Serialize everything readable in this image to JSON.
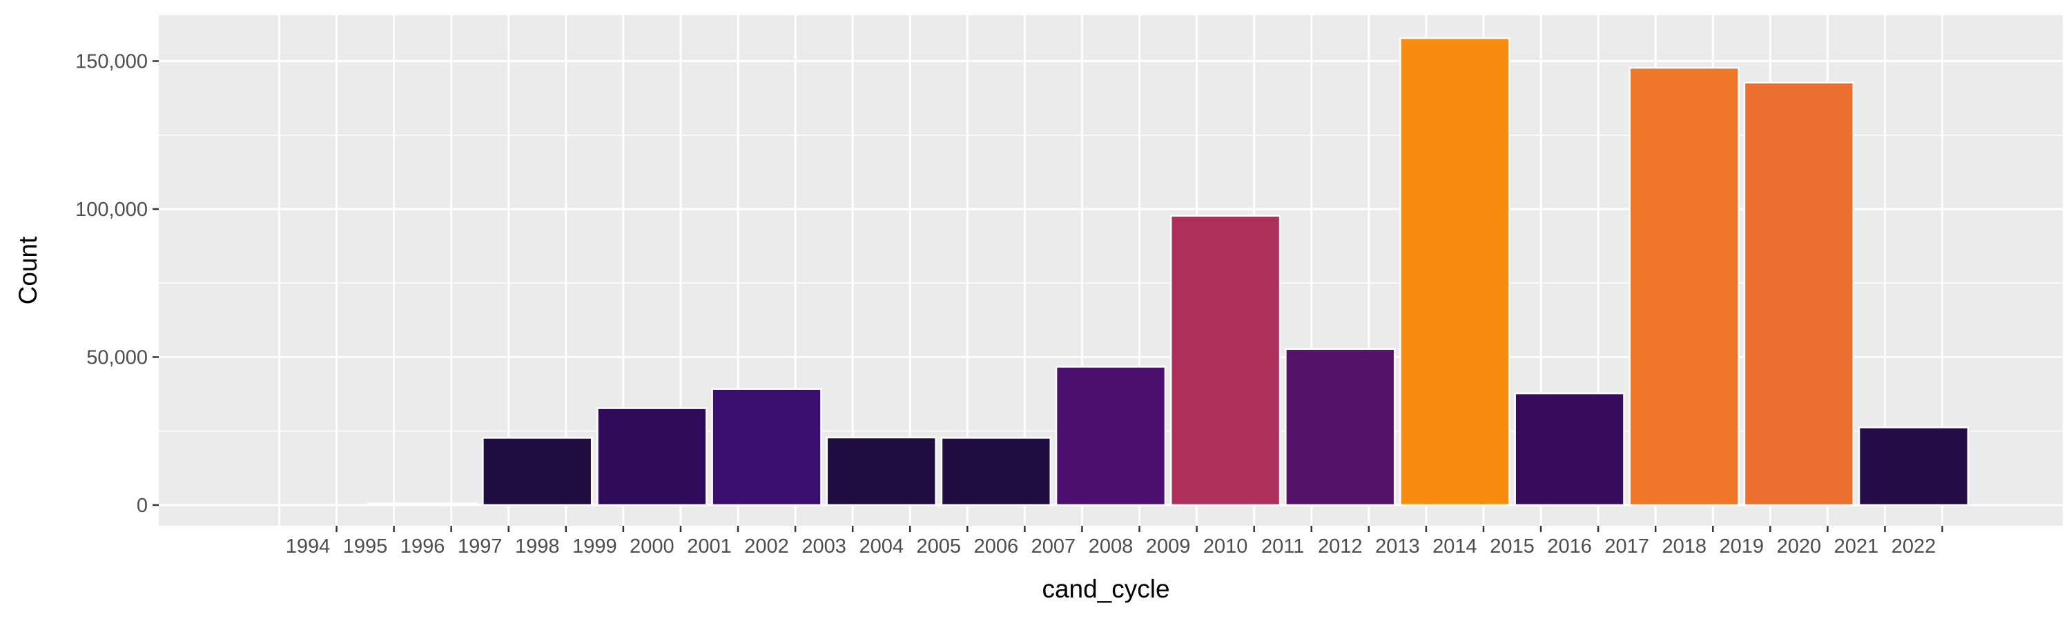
{
  "chart_data": {
    "type": "bar",
    "title": "",
    "xlabel": "cand_cycle",
    "ylabel": "Count",
    "categories": [
      "1994",
      "1995",
      "1996",
      "1997",
      "1998",
      "1999",
      "2000",
      "2001",
      "2002",
      "2003",
      "2004",
      "2005",
      "2006",
      "2007",
      "2008",
      "2009",
      "2010",
      "2011",
      "2012",
      "2013",
      "2014",
      "2015",
      "2016",
      "2017",
      "2018",
      "2019",
      "2020",
      "2021",
      "2022"
    ],
    "bars": [
      {
        "x_from": 1995,
        "x_to": 1997,
        "value": 300,
        "color": "#000004"
      },
      {
        "x_from": 1997,
        "x_to": 1999,
        "value": 22500,
        "color": "#200c3f"
      },
      {
        "x_from": 1999,
        "x_to": 2001,
        "value": 32500,
        "color": "#2f0a5b"
      },
      {
        "x_from": 2001,
        "x_to": 2003,
        "value": 39000,
        "color": "#3b0f6f"
      },
      {
        "x_from": 2003,
        "x_to": 2005,
        "value": 22600,
        "color": "#200c3f"
      },
      {
        "x_from": 2005,
        "x_to": 2007,
        "value": 22500,
        "color": "#200c3f"
      },
      {
        "x_from": 2007,
        "x_to": 2009,
        "value": 46500,
        "color": "#4b0f6d"
      },
      {
        "x_from": 2009,
        "x_to": 2011,
        "value": 97500,
        "color": "#ad305a"
      },
      {
        "x_from": 2011,
        "x_to": 2013,
        "value": 52500,
        "color": "#56136a"
      },
      {
        "x_from": 2013,
        "x_to": 2015,
        "value": 157500,
        "color": "#f78c0e"
      },
      {
        "x_from": 2015,
        "x_to": 2017,
        "value": 37500,
        "color": "#380c5d"
      },
      {
        "x_from": 2017,
        "x_to": 2019,
        "value": 147500,
        "color": "#ee7729"
      },
      {
        "x_from": 2019,
        "x_to": 2021,
        "value": 142500,
        "color": "#eb6f2e"
      },
      {
        "x_from": 2021,
        "x_to": 2023,
        "value": 26000,
        "color": "#240c47"
      }
    ],
    "y_ticks": [
      {
        "value": 0,
        "label": "0"
      },
      {
        "value": 50000,
        "label": "50,000"
      },
      {
        "value": 100000,
        "label": "100,000"
      },
      {
        "value": 150000,
        "label": "150,000"
      }
    ],
    "xlim": [
      1991.4,
      2024.6
    ],
    "ylim": [
      -7000,
      165500
    ],
    "grid": true,
    "panel_background": "#ebebeb",
    "grid_color": "#ffffff"
  }
}
